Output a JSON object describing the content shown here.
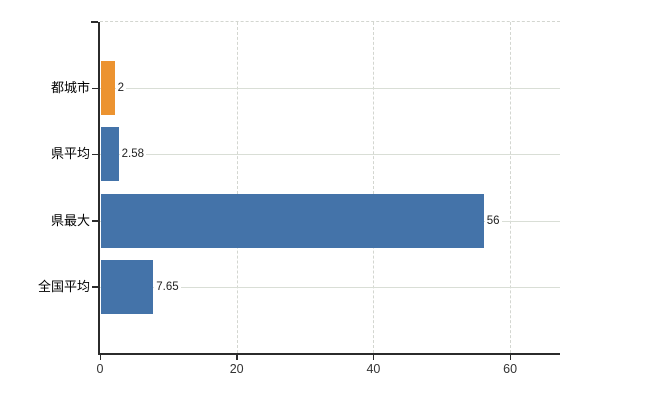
{
  "chart_data": {
    "type": "bar",
    "orientation": "horizontal",
    "title": "",
    "xlabel": "",
    "ylabel": "",
    "categories": [
      "都城市",
      "県平均",
      "県最大",
      "全国平均"
    ],
    "values": [
      2,
      2.58,
      56,
      7.65
    ],
    "value_labels": [
      "2",
      "2.58",
      "56",
      "7.65"
    ],
    "bar_colors": [
      "#ec9330",
      "#4473a9",
      "#4473a9",
      "#4473a9"
    ],
    "x_ticks": [
      0,
      20,
      40,
      60
    ],
    "x_tick_labels": [
      "0",
      "20",
      "40",
      "60"
    ],
    "xlim": [
      0,
      67.3
    ],
    "legend": "none",
    "grid": {
      "vertical": "dashed",
      "horizontal": "solid row lines at each category center",
      "plot_top_border": "dashed"
    },
    "colors": {
      "bar_blue": "#4473a9",
      "bar_orange": "#ec9330",
      "axis": "#2b2b2b",
      "grid_horizontal": "#d9ded6",
      "grid_vertical": "#d3d6d0",
      "category_text": "#000000",
      "value_text": "#1f1f1f",
      "tick_text": "#333333",
      "background": "#ffffff"
    }
  }
}
